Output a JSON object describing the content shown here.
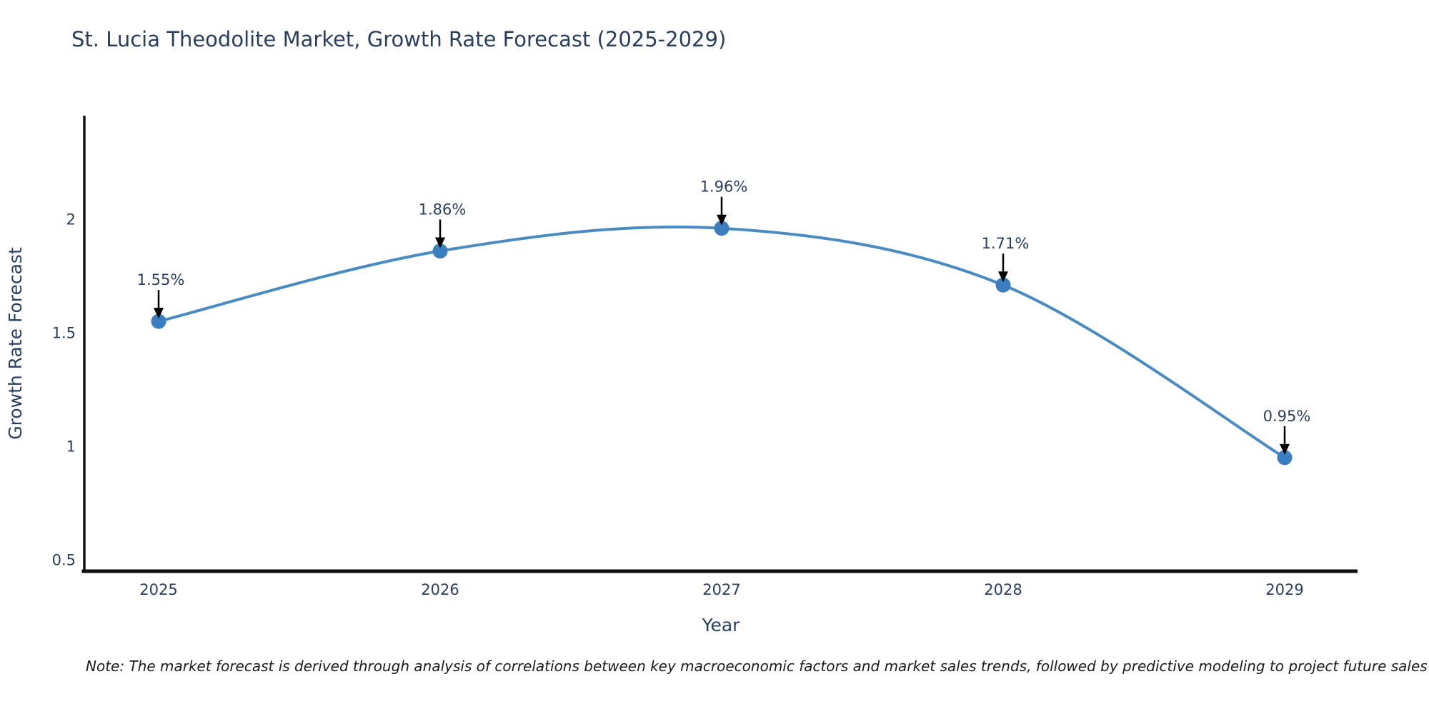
{
  "chart_data": {
    "type": "line",
    "title": "St. Lucia Theodolite Market, Growth Rate Forecast (2025-2029)",
    "xlabel": "Year",
    "ylabel": "Growth Rate Forecast",
    "categories": [
      "2025",
      "2026",
      "2027",
      "2028",
      "2029"
    ],
    "values": [
      1.55,
      1.86,
      1.96,
      1.71,
      0.95
    ],
    "point_labels": [
      "1.55%",
      "1.86%",
      "1.96%",
      "1.71%",
      "0.95%"
    ],
    "yticks": [
      "0.5",
      "1",
      "1.5",
      "2"
    ],
    "ytick_values": [
      0.5,
      1,
      1.5,
      2
    ],
    "ylim": [
      0.45,
      2.46
    ],
    "grid": "off",
    "legend": "none",
    "line_shape": "spline",
    "colors": {
      "line": "#4a8bc2",
      "marker": "#3a7ebf",
      "arrow": "#000000",
      "text": "#2a3f5f",
      "axis": "#111111",
      "note": "#1b1b1b",
      "background": "#ffffff"
    }
  },
  "footnote": "Note: The market forecast is derived through analysis of correlations between key macroeconomic factors and market sales trends, followed by predictive modeling to project future sales"
}
